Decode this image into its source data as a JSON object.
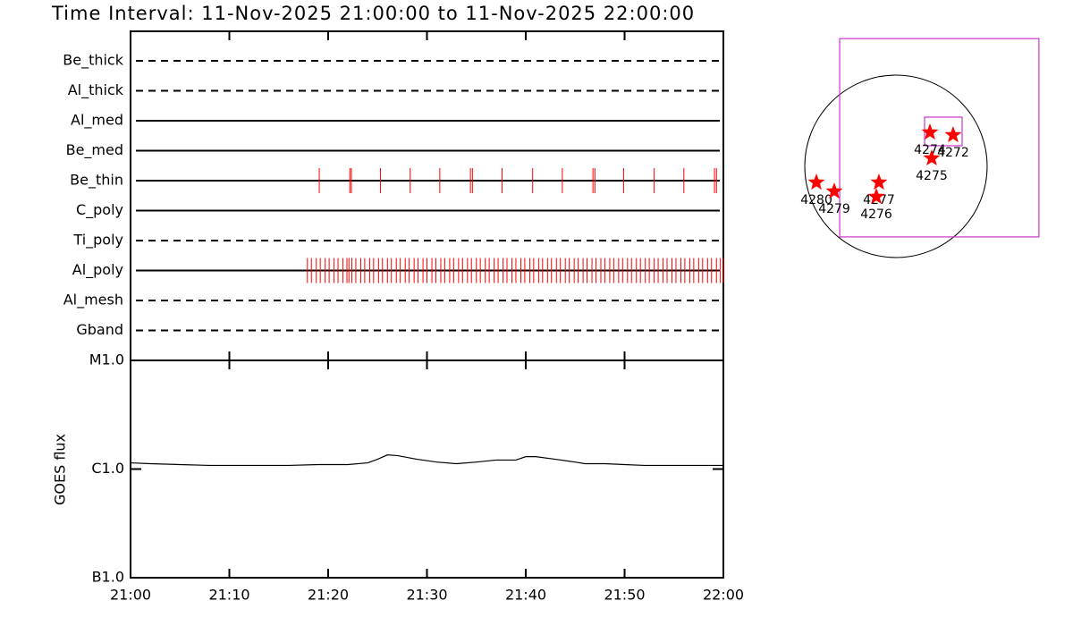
{
  "title": "Time Interval: 11-Nov-2025 21:00:00 to 11-Nov-2025 22:00:00",
  "chart_data": [
    {
      "type": "timeline",
      "tick_color": "#ff0000",
      "xlim": [
        0,
        60
      ],
      "filters": [
        {
          "name": "Be_thick",
          "style": "dashed",
          "times": []
        },
        {
          "name": "Al_thick",
          "style": "dashed",
          "times": []
        },
        {
          "name": "Al_med",
          "style": "solid",
          "times": []
        },
        {
          "name": "Be_med",
          "style": "solid",
          "times": []
        },
        {
          "name": "Be_thin",
          "style": "solid",
          "times": [
            19.1,
            22.2,
            22.35,
            25.3,
            28.3,
            31.3,
            34.4,
            34.6,
            37.6,
            40.7,
            43.7,
            46.8,
            47.0,
            49.9,
            53.0,
            56.0,
            59.1,
            59.3
          ]
        },
        {
          "name": "C_poly",
          "style": "solid",
          "times": []
        },
        {
          "name": "Ti_poly",
          "style": "dashed",
          "times": []
        },
        {
          "name": "Al_poly",
          "style": "solid",
          "times": [
            17.9,
            18.3,
            18.8,
            19.2,
            19.7,
            20.1,
            20.6,
            21.0,
            21.5,
            21.9,
            22.1,
            22.4,
            22.8,
            23.3,
            23.7,
            24.2,
            24.6,
            25.1,
            25.5,
            26.0,
            26.4,
            26.9,
            27.3,
            27.8,
            28.2,
            28.7,
            29.1,
            29.6,
            30.0,
            30.5,
            30.9,
            31.4,
            31.8,
            32.3,
            32.7,
            33.2,
            33.6,
            34.1,
            34.5,
            35.0,
            35.4,
            35.9,
            36.3,
            36.8,
            37.2,
            37.7,
            38.1,
            38.6,
            39.0,
            39.5,
            39.9,
            40.4,
            40.8,
            41.3,
            41.7,
            42.2,
            42.6,
            43.1,
            43.5,
            44.0,
            44.4,
            44.9,
            45.3,
            45.8,
            46.2,
            46.7,
            47.1,
            47.6,
            48.0,
            48.5,
            48.9,
            49.4,
            49.8,
            50.3,
            50.7,
            51.2,
            51.6,
            52.1,
            52.5,
            53.0,
            53.4,
            53.9,
            54.3,
            54.8,
            55.2,
            55.7,
            56.1,
            56.6,
            57.0,
            57.5,
            57.9,
            58.4,
            58.8,
            59.3,
            59.7,
            60.0
          ]
        },
        {
          "name": "Al_mesh",
          "style": "dashed",
          "times": []
        },
        {
          "name": "Gband",
          "style": "dashed",
          "times": []
        }
      ]
    },
    {
      "type": "line",
      "y_label": "GOES flux",
      "log_scale": true,
      "color": "#000000",
      "x": [
        0,
        2,
        5,
        8,
        12,
        16,
        19,
        22,
        24,
        25,
        26,
        27,
        29,
        31,
        33,
        35,
        37,
        39,
        40,
        41,
        43,
        45,
        46,
        48,
        50,
        52,
        55,
        58,
        60
      ],
      "values": [
        1.14e-06,
        1.12e-06,
        1.1e-06,
        1.08e-06,
        1.08e-06,
        1.08e-06,
        1.1e-06,
        1.1e-06,
        1.14e-06,
        1.23e-06,
        1.35e-06,
        1.33e-06,
        1.23e-06,
        1.16e-06,
        1.12e-06,
        1.16e-06,
        1.21e-06,
        1.21e-06,
        1.3e-06,
        1.3e-06,
        1.23e-06,
        1.16e-06,
        1.12e-06,
        1.12e-06,
        1.1e-06,
        1.08e-06,
        1.08e-06,
        1.08e-06,
        1.08e-06
      ],
      "xlim": [
        0,
        60
      ],
      "xticks": [
        {
          "value": 0,
          "label": "21:00"
        },
        {
          "value": 10,
          "label": "21:10"
        },
        {
          "value": 20,
          "label": "21:20"
        },
        {
          "value": 30,
          "label": "21:30"
        },
        {
          "value": 40,
          "label": "21:40"
        },
        {
          "value": 50,
          "label": "21:50"
        },
        {
          "value": 60,
          "label": "22:00"
        }
      ],
      "ylim": [
        1e-07,
        1e-05
      ],
      "yticks": [
        {
          "value": 1e-07,
          "label": "B1.0"
        },
        {
          "value": 1e-06,
          "label": "C1.0"
        },
        {
          "value": 1e-05,
          "label": "M1.0"
        }
      ]
    },
    {
      "type": "map",
      "solar_radius": 970,
      "star_color": "#ff0000",
      "box_color": "#cc33cc",
      "fov": [
        {
          "x": 461,
          "y": 304,
          "width": 2119,
          "height": 2109
        },
        {
          "x": 504,
          "y": 371,
          "width": 399,
          "height": 304
        }
      ],
      "regions": [
        {
          "label": "4274",
          "x": 361,
          "y": 361
        },
        {
          "label": "4272",
          "x": 608,
          "y": 333
        },
        {
          "label": "4275",
          "x": 380,
          "y": 86
        },
        {
          "label": "4280",
          "x": -846,
          "y": -171
        },
        {
          "label": "4279",
          "x": -656,
          "y": -266
        },
        {
          "label": "4277",
          "x": -181,
          "y": -171
        },
        {
          "label": "4276",
          "x": -209,
          "y": -323
        }
      ]
    }
  ]
}
